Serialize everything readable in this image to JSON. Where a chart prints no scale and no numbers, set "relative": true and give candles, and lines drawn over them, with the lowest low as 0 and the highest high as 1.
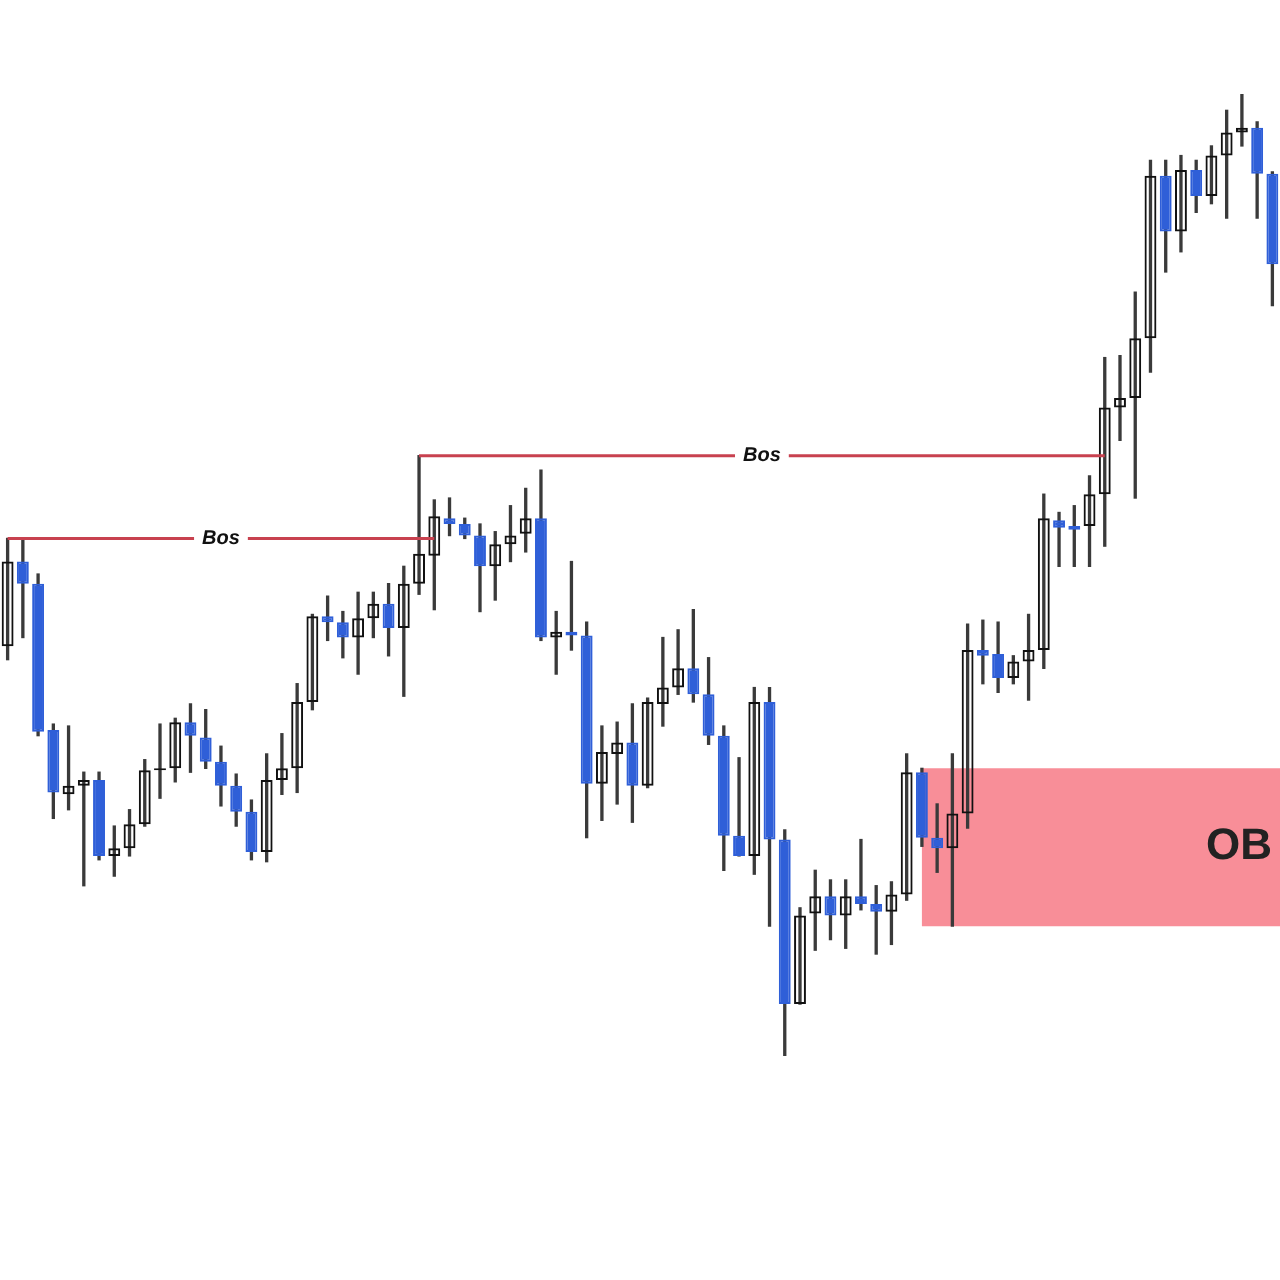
{
  "chart_data": {
    "type": "candlestick",
    "relative": true,
    "tick_labels": false,
    "categories": [
      null,
      null,
      null,
      null,
      null,
      null,
      null,
      null,
      null,
      null,
      null,
      null,
      null,
      null,
      null,
      null,
      null,
      null,
      null,
      null,
      null,
      null,
      null,
      null,
      null,
      null,
      null,
      null,
      null,
      null,
      null,
      null,
      null,
      null,
      null,
      null,
      null,
      null,
      null,
      null,
      null,
      null,
      null,
      null,
      null,
      null,
      null,
      null,
      null,
      null,
      null,
      null,
      null,
      null,
      null,
      null,
      null,
      null,
      null,
      null,
      null,
      null,
      null,
      null,
      null,
      null,
      null,
      null,
      null,
      null,
      null,
      null,
      null,
      null,
      null,
      null,
      null,
      null,
      null,
      null,
      null,
      null,
      null,
      null
    ],
    "ohlc": [
      [
        0.426,
        0.538,
        0.412,
        0.514
      ],
      [
        0.514,
        0.536,
        0.435,
        0.491
      ],
      [
        0.491,
        0.501,
        0.333,
        0.337
      ],
      [
        0.339,
        0.345,
        0.247,
        0.274
      ],
      [
        0.272,
        0.343,
        0.256,
        0.281
      ],
      [
        0.281,
        0.295,
        0.177,
        0.287
      ],
      [
        0.287,
        0.295,
        0.204,
        0.208
      ],
      [
        0.208,
        0.239,
        0.187,
        0.216
      ],
      [
        0.216,
        0.256,
        0.208,
        0.241
      ],
      [
        0.241,
        0.308,
        0.239,
        0.297
      ],
      [
        0.297,
        0.345,
        0.268,
        0.299
      ],
      [
        0.299,
        0.351,
        0.285,
        0.347
      ],
      [
        0.347,
        0.366,
        0.295,
        0.333
      ],
      [
        0.331,
        0.36,
        0.299,
        0.306
      ],
      [
        0.306,
        0.322,
        0.26,
        0.281
      ],
      [
        0.281,
        0.293,
        0.239,
        0.254
      ],
      [
        0.254,
        0.266,
        0.204,
        0.212
      ],
      [
        0.212,
        0.314,
        0.202,
        0.287
      ],
      [
        0.287,
        0.335,
        0.272,
        0.299
      ],
      [
        0.299,
        0.387,
        0.274,
        0.368
      ],
      [
        0.368,
        0.459,
        0.36,
        0.457
      ],
      [
        0.457,
        0.478,
        0.432,
        0.451
      ],
      [
        0.451,
        0.462,
        0.414,
        0.435
      ],
      [
        0.435,
        0.482,
        0.397,
        0.455
      ],
      [
        0.455,
        0.482,
        0.435,
        0.47
      ],
      [
        0.47,
        0.491,
        0.416,
        0.445
      ],
      [
        0.445,
        0.509,
        0.374,
        0.491
      ],
      [
        0.491,
        0.624,
        0.48,
        0.522
      ],
      [
        0.52,
        0.578,
        0.464,
        0.561
      ],
      [
        0.559,
        0.58,
        0.541,
        0.553
      ],
      [
        0.553,
        0.559,
        0.538,
        0.541
      ],
      [
        0.541,
        0.553,
        0.462,
        0.509
      ],
      [
        0.509,
        0.545,
        0.474,
        0.532
      ],
      [
        0.532,
        0.572,
        0.514,
        0.541
      ],
      [
        0.543,
        0.59,
        0.524,
        0.559
      ],
      [
        0.559,
        0.609,
        0.432,
        0.435
      ],
      [
        0.435,
        0.462,
        0.397,
        0.441
      ],
      [
        0.441,
        0.514,
        0.422,
        0.437
      ],
      [
        0.437,
        0.451,
        0.227,
        0.283
      ],
      [
        0.283,
        0.343,
        0.245,
        0.316
      ],
      [
        0.314,
        0.347,
        0.262,
        0.326
      ],
      [
        0.326,
        0.366,
        0.243,
        0.281
      ],
      [
        0.281,
        0.372,
        0.279,
        0.368
      ],
      [
        0.366,
        0.435,
        0.343,
        0.383
      ],
      [
        0.383,
        0.443,
        0.376,
        0.403
      ],
      [
        0.403,
        0.464,
        0.368,
        0.376
      ],
      [
        0.376,
        0.414,
        0.324,
        0.333
      ],
      [
        0.333,
        0.343,
        0.193,
        0.229
      ],
      [
        0.229,
        0.31,
        0.208,
        0.208
      ],
      [
        0.208,
        0.383,
        0.189,
        0.368
      ],
      [
        0.368,
        0.383,
        0.135,
        0.225
      ],
      [
        0.225,
        0.235,
        0,
        0.054
      ],
      [
        0.054,
        0.154,
        0.054,
        0.146
      ],
      [
        0.148,
        0.193,
        0.11,
        0.166
      ],
      [
        0.166,
        0.183,
        0.121,
        0.146
      ],
      [
        0.146,
        0.183,
        0.112,
        0.166
      ],
      [
        0.166,
        0.225,
        0.152,
        0.158
      ],
      [
        0.158,
        0.177,
        0.106,
        0.15
      ],
      [
        0.15,
        0.181,
        0.116,
        0.168
      ],
      [
        0.168,
        0.314,
        0.162,
        0.295
      ],
      [
        0.295,
        0.299,
        0.218,
        0.227
      ],
      [
        0.227,
        0.262,
        0.191,
        0.216
      ],
      [
        0.216,
        0.314,
        0.135,
        0.252
      ],
      [
        0.252,
        0.449,
        0.237,
        0.422
      ],
      [
        0.422,
        0.453,
        0.387,
        0.416
      ],
      [
        0.418,
        0.451,
        0.378,
        0.393
      ],
      [
        0.393,
        0.416,
        0.387,
        0.41
      ],
      [
        0.41,
        0.459,
        0.37,
        0.422
      ],
      [
        0.422,
        0.584,
        0.403,
        0.559
      ],
      [
        0.557,
        0.565,
        0.509,
        0.549
      ],
      [
        0.551,
        0.572,
        0.509,
        0.547
      ],
      [
        0.551,
        0.603,
        0.509,
        0.584
      ],
      [
        0.584,
        0.726,
        0.53,
        0.674
      ],
      [
        0.674,
        0.728,
        0.64,
        0.684
      ],
      [
        0.684,
        0.794,
        0.58,
        0.746
      ],
      [
        0.746,
        0.931,
        0.711,
        0.915
      ],
      [
        0.915,
        0.931,
        0.815,
        0.857
      ],
      [
        0.857,
        0.936,
        0.836,
        0.921
      ],
      [
        0.921,
        0.931,
        0.877,
        0.894
      ],
      [
        0.894,
        0.946,
        0.886,
        0.936
      ],
      [
        0.936,
        0.983,
        0.871,
        0.96
      ],
      [
        0.96,
        1,
        0.946,
        0.965
      ],
      [
        0.965,
        0.971,
        0.871,
        0.917
      ],
      [
        0.917,
        0.919,
        0.78,
        0.823
      ]
    ],
    "colors": [
      "#111111",
      "#2f5fd8",
      "#2f5fd8",
      "#2f5fd8",
      "#111111",
      "#111111",
      "#2f5fd8",
      "#111111",
      "#111111",
      "#111111",
      "#111111",
      "#111111",
      "#2f5fd8",
      "#2f5fd8",
      "#2f5fd8",
      "#2f5fd8",
      "#2f5fd8",
      "#111111",
      "#111111",
      "#111111",
      "#111111",
      "#2f5fd8",
      "#2f5fd8",
      "#111111",
      "#111111",
      "#2f5fd8",
      "#111111",
      "#111111",
      "#111111",
      "#2f5fd8",
      "#2f5fd8",
      "#2f5fd8",
      "#111111",
      "#111111",
      "#111111",
      "#2f5fd8",
      "#111111",
      "#2f5fd8",
      "#2f5fd8",
      "#111111",
      "#111111",
      "#2f5fd8",
      "#111111",
      "#111111",
      "#111111",
      "#2f5fd8",
      "#2f5fd8",
      "#2f5fd8",
      "#2f5fd8",
      "#111111",
      "#2f5fd8",
      "#2f5fd8",
      "#111111",
      "#111111",
      "#2f5fd8",
      "#111111",
      "#2f5fd8",
      "#2f5fd8",
      "#111111",
      "#111111",
      "#2f5fd8",
      "#2f5fd8",
      "#111111",
      "#111111",
      "#2f5fd8",
      "#2f5fd8",
      "#111111",
      "#111111",
      "#111111",
      "#2f5fd8",
      "#2f5fd8",
      "#111111",
      "#111111",
      "#111111",
      "#111111",
      "#111111",
      "#2f5fd8",
      "#111111",
      "#2f5fd8",
      "#111111",
      "#111111",
      "#111111",
      "#2f5fd8",
      "#2f5fd8"
    ],
    "ref_lines": [
      {
        "axis": "y",
        "value": 0.538,
        "label": "Bos",
        "color": "#c8414f"
      },
      {
        "axis": "y",
        "value": 0.624,
        "label": "Bos",
        "color": "#c8414f"
      }
    ],
    "bands": [
      {
        "axis": "y",
        "from": 0.135,
        "to": 0.299,
        "label": "OB",
        "color": "#f88e98"
      }
    ]
  }
}
